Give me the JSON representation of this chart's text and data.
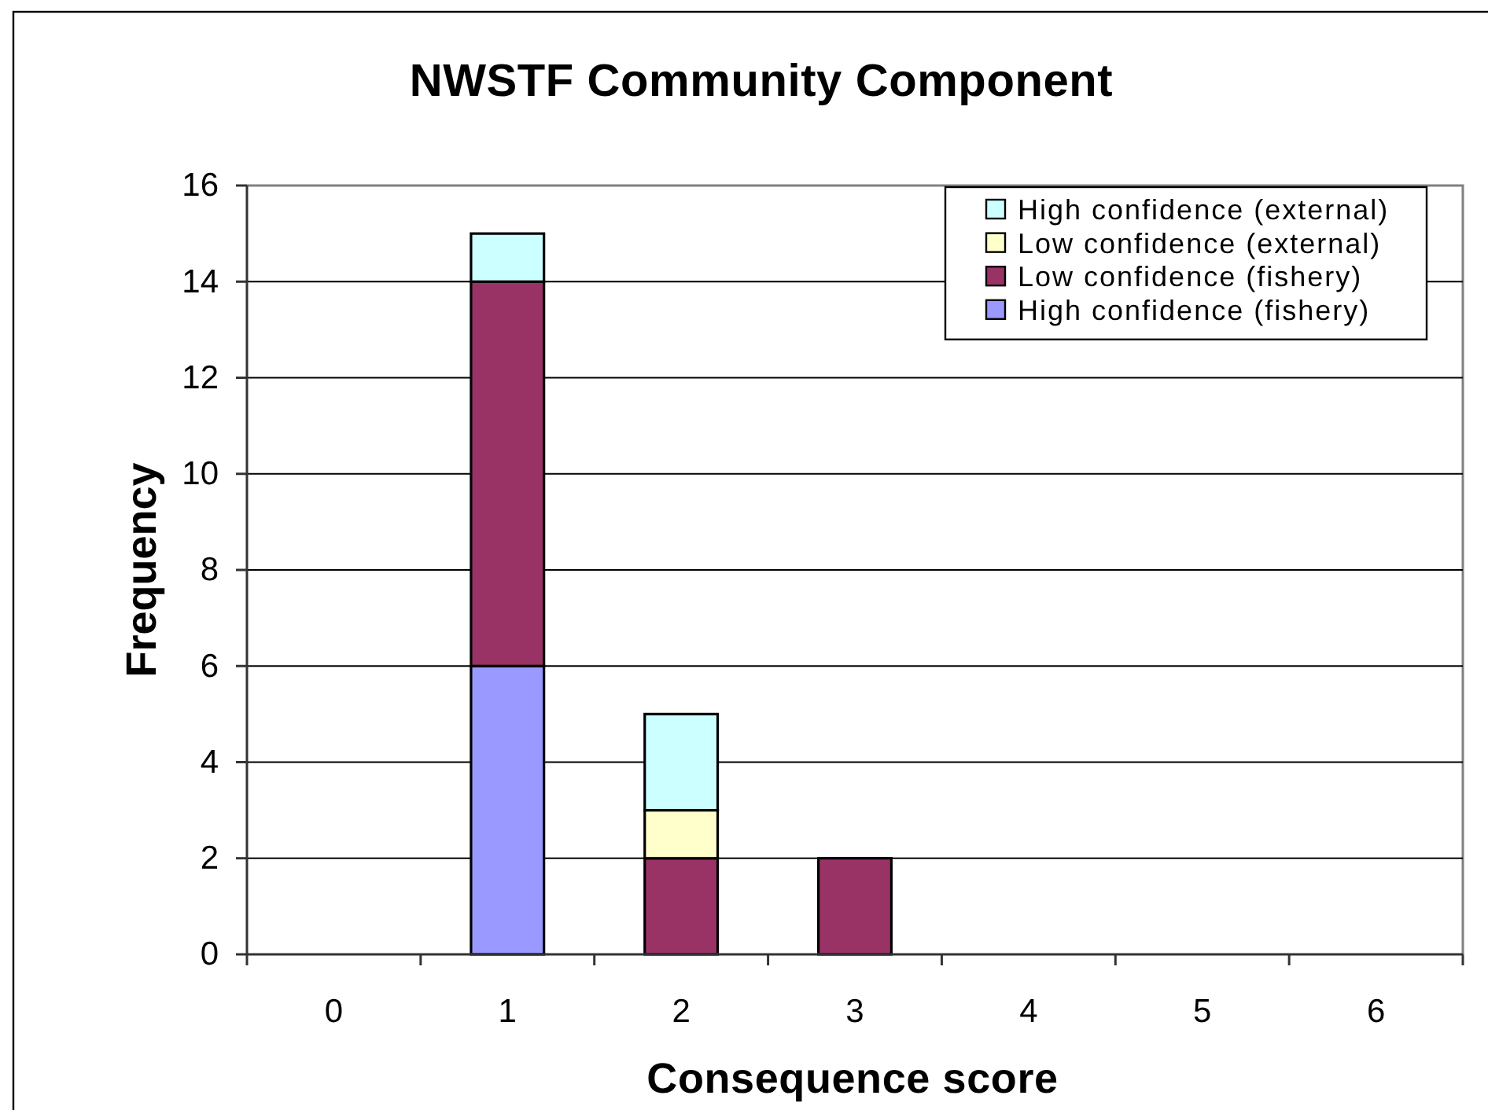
{
  "chart_data": {
    "type": "bar",
    "title": "NWSTF Community Component",
    "xlabel": "Consequence score",
    "ylabel": "Frequency",
    "categories": [
      "0",
      "1",
      "2",
      "3",
      "4",
      "5",
      "6"
    ],
    "stacked": true,
    "series": [
      {
        "name": "High confidence (fishery)",
        "color": "#9999ff",
        "values": [
          0,
          6,
          0,
          0,
          0,
          0,
          0
        ]
      },
      {
        "name": "Low confidence (fishery)",
        "color": "#993366",
        "values": [
          0,
          8,
          2,
          2,
          0,
          0,
          0
        ]
      },
      {
        "name": "Low confidence (external)",
        "color": "#ffffcc",
        "values": [
          0,
          0,
          1,
          0,
          0,
          0,
          0
        ]
      },
      {
        "name": "High confidence (external)",
        "color": "#ccffff",
        "values": [
          0,
          1,
          2,
          0,
          0,
          0,
          0
        ]
      }
    ],
    "ylim": [
      0,
      16
    ],
    "yticks": [
      0,
      2,
      4,
      6,
      8,
      10,
      12,
      14,
      16
    ],
    "grid": "y",
    "legend": "top right"
  }
}
